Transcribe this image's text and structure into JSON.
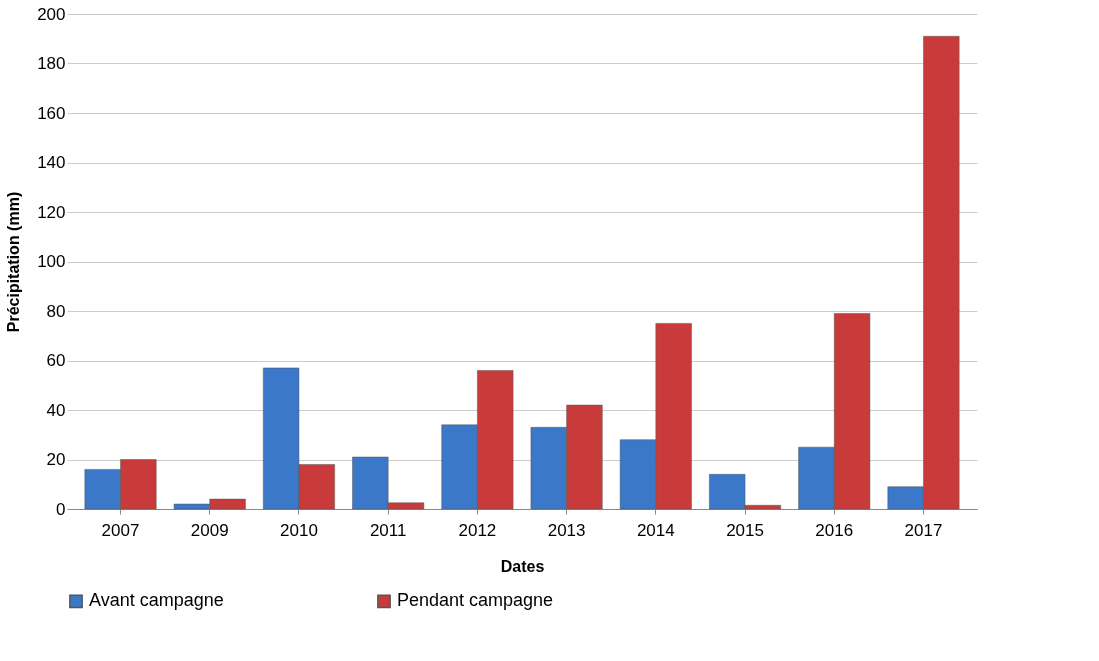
{
  "chart_data": {
    "type": "bar",
    "xlabel": "Dates",
    "ylabel": "Précipitation (mm)",
    "categories": [
      "2007",
      "2009",
      "2010",
      "2011",
      "2012",
      "2013",
      "2014",
      "2015",
      "2016",
      "2017"
    ],
    "series": [
      {
        "name": "Avant campagne",
        "color": "#3b78c9",
        "values": [
          16,
          2,
          57,
          21,
          34,
          33,
          28,
          14,
          25,
          9
        ]
      },
      {
        "name": "Pendant campagne",
        "color": "#c93b3b",
        "values": [
          20,
          4,
          18,
          2.5,
          56,
          42,
          75,
          1.5,
          79,
          191
        ]
      }
    ],
    "ylim": [
      0,
      200
    ],
    "yticks": [
      0,
      20,
      40,
      60,
      80,
      100,
      120,
      140,
      160,
      180,
      200
    ],
    "grid": "y",
    "legend": "bottom"
  }
}
